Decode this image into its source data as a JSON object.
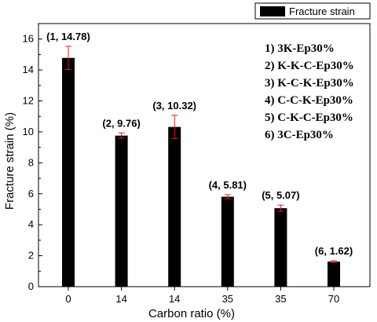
{
  "chart_data": {
    "type": "bar",
    "categories": [
      "0",
      "14",
      "14",
      "35",
      "35",
      "70"
    ],
    "series": [
      {
        "name": "Fracture strain",
        "values": [
          14.78,
          9.76,
          10.32,
          5.81,
          5.07,
          1.62
        ],
        "errors": [
          0.75,
          0.17,
          0.75,
          0.13,
          0.2,
          0.06
        ],
        "color": "#000000",
        "error_color": "#e0201a"
      }
    ],
    "data_labels": [
      "(1, 14.78)",
      "(2, 9.76)",
      "(3, 10.32)",
      "(4, 5.81)",
      "(5, 5.07)",
      "(6, 1.62)"
    ],
    "xlabel": "Carbon ratio (%)",
    "ylabel": "Fracture strain (%)",
    "ylim": [
      0,
      17
    ],
    "yticks": [
      "0",
      "2",
      "4",
      "6",
      "8",
      "10",
      "12",
      "14",
      "16"
    ],
    "yticks_values": [
      0,
      2,
      4,
      6,
      8,
      10,
      12,
      14,
      16
    ],
    "legend_position": "top-right",
    "grid": false
  },
  "sample_list": [
    "1) 3K-Ep30%",
    "2) K-K-C-Ep30%",
    "3) K-C-K-Ep30%",
    "4) C-C-K-Ep30%",
    "5) C-K-C-Ep30%",
    "6) 3C-Ep30%"
  ]
}
